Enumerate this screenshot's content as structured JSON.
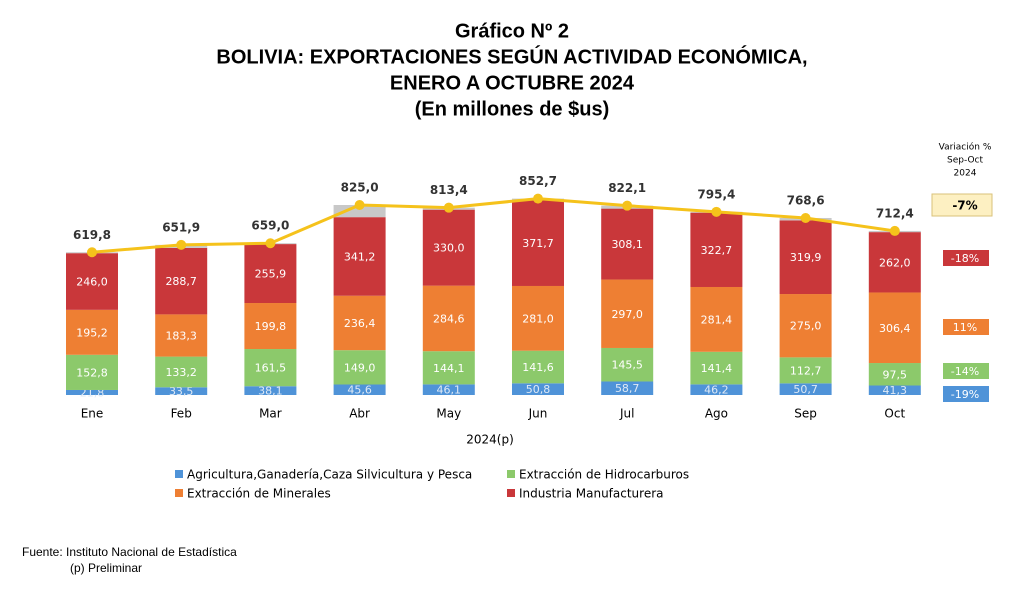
{
  "chart_data": {
    "type": "stacked_bar_line",
    "title": [
      "Gráfico Nº 2",
      "BOLIVIA: EXPORTACIONES SEGÚN ACTIVIDAD ECONÓMICA,",
      "ENERO A OCTUBRE 2024",
      "(En millones de $us)"
    ],
    "x_label": "2024(p)",
    "categories": [
      "Ene",
      "Feb",
      "Mar",
      "Abr",
      "May",
      "Jun",
      "Jul",
      "Ago",
      "Sep",
      "Oct"
    ],
    "series": [
      {
        "name": "Agricultura,Ganadería,Caza Silvicultura y Pesca",
        "color": "#4f93d8",
        "values": [
          21.8,
          33.5,
          38.1,
          45.6,
          46.1,
          50.8,
          58.7,
          46.2,
          50.7,
          41.3
        ],
        "value_labels": [
          "21,8",
          "33,5",
          "38,1",
          "45,6",
          "46,1",
          "50,8",
          "58,7",
          "46,2",
          "50,7",
          "41,3"
        ]
      },
      {
        "name": "Extracción de Hidrocarburos",
        "color": "#8cc96b",
        "values": [
          152.8,
          133.2,
          161.5,
          149.0,
          144.1,
          141.6,
          145.5,
          141.4,
          112.7,
          97.5
        ],
        "value_labels": [
          "152,8",
          "133,2",
          "161,5",
          "149,0",
          "144,1",
          "141,6",
          "145,5",
          "141,4",
          "112,7",
          "97,5"
        ]
      },
      {
        "name": "Extracción de Minerales",
        "color": "#ee7f33",
        "values": [
          195.2,
          183.3,
          199.8,
          236.4,
          284.6,
          281.0,
          297.0,
          281.4,
          275.0,
          306.4
        ],
        "value_labels": [
          "195,2",
          "183,3",
          "199,8",
          "236,4",
          "284,6",
          "281,0",
          "297,0",
          "281,4",
          "275,0",
          "306,4"
        ]
      },
      {
        "name": "Industria Manufacturera",
        "color": "#c9373a",
        "values": [
          246.0,
          288.7,
          255.9,
          341.2,
          330.0,
          371.7,
          308.1,
          322.7,
          319.9,
          262.0
        ],
        "value_labels": [
          "246,0",
          "288,7",
          "255,9",
          "341,2",
          "330,0",
          "371,7",
          "308,1",
          "322,7",
          "319,9",
          "262,0"
        ]
      }
    ],
    "totals": {
      "color": "#f5c21b",
      "rest_color": "#c8c8c8",
      "values": [
        619.8,
        651.9,
        659.0,
        825.0,
        813.4,
        852.7,
        822.1,
        795.4,
        768.6,
        712.4
      ],
      "value_labels": [
        "619,8",
        "651,9",
        "659,0",
        "825,0",
        "813,4",
        "852,7",
        "822,1",
        "795,4",
        "768,6",
        "712,4"
      ]
    },
    "variation": {
      "title": [
        "Variación %",
        "Sep-Oct",
        "2024"
      ],
      "values": [
        -7,
        -18,
        11,
        -14,
        -19
      ],
      "value_labels": [
        "-7%",
        "-18%",
        "11%",
        "-14%",
        "-19%"
      ],
      "colors": [
        "#fdf0c2",
        "#c9373a",
        "#ee7f33",
        "#8cc96b",
        "#4f93d8"
      ]
    },
    "source": [
      "Fuente: Instituto Nacional de Estadística",
      "(p) Preliminar"
    ]
  }
}
